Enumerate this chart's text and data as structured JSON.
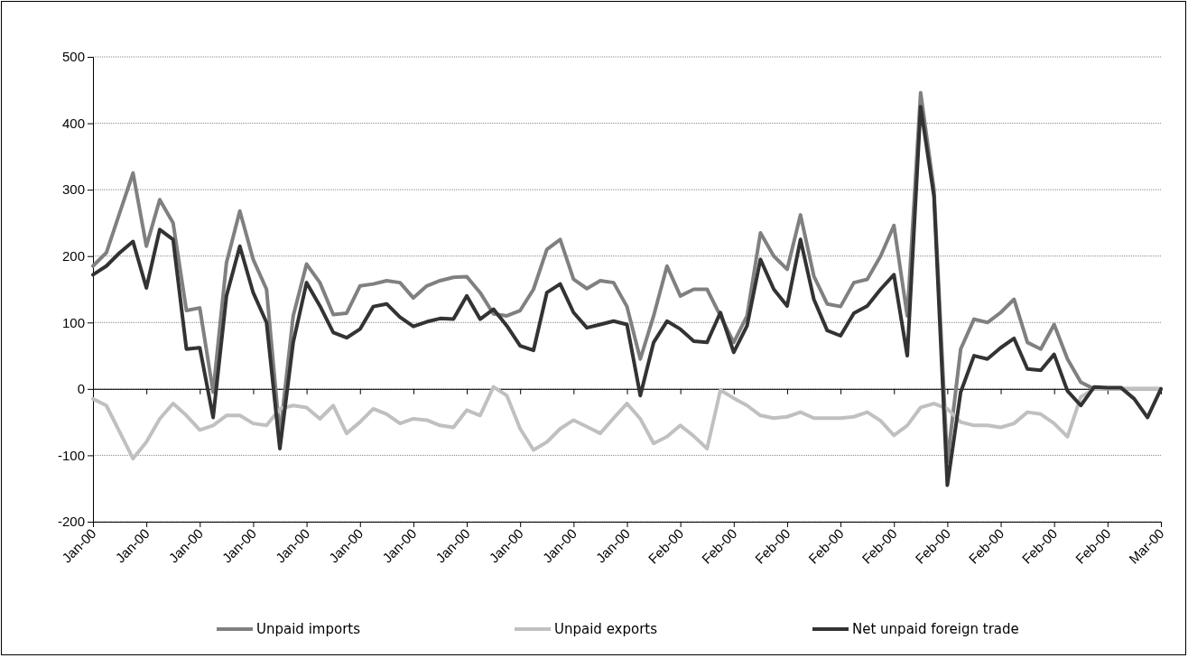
{
  "chart_data": {
    "type": "line",
    "categories": [
      "Jan-00",
      null,
      null,
      null,
      "Jan-00",
      null,
      null,
      null,
      "Jan-00",
      null,
      null,
      null,
      "Jan-00",
      null,
      null,
      null,
      "Jan-00",
      null,
      null,
      null,
      "Jan-00",
      null,
      null,
      null,
      "Jan-00",
      null,
      null,
      null,
      "Jan-00",
      null,
      null,
      null,
      "Jan-00",
      null,
      null,
      null,
      "Jan-00",
      null,
      null,
      null,
      "Jan-00",
      null,
      null,
      null,
      "Feb-00",
      null,
      null,
      null,
      "Feb-00",
      null,
      null,
      null,
      "Feb-00",
      null,
      null,
      null,
      "Feb-00",
      null,
      null,
      null,
      "Feb-00",
      null,
      null,
      null,
      "Feb-00",
      null,
      null,
      null,
      "Feb-00",
      null,
      null,
      null,
      "Feb-00",
      null,
      null,
      null,
      "Feb-00",
      null,
      null,
      null,
      "Mar-00"
    ],
    "series": [
      {
        "name": "Unpaid imports",
        "color": "#808080",
        "values": [
          185,
          205,
          265,
          325,
          215,
          285,
          250,
          118,
          122,
          -5,
          190,
          268,
          195,
          150,
          -70,
          110,
          188,
          160,
          112,
          114,
          155,
          158,
          163,
          160,
          137,
          155,
          163,
          168,
          169,
          145,
          113,
          110,
          118,
          150,
          210,
          225,
          165,
          151,
          163,
          160,
          124,
          45,
          110,
          185,
          140,
          150,
          150,
          110,
          70,
          110,
          235,
          200,
          180,
          262,
          170,
          128,
          124,
          160,
          165,
          200,
          246,
          110,
          446,
          300,
          -110,
          60,
          105,
          100,
          115,
          135,
          70,
          60,
          97,
          45,
          10,
          0,
          0,
          0,
          0,
          0,
          0
        ]
      },
      {
        "name": "Unpaid exports",
        "color": "#c0c0c0",
        "values": [
          -15,
          -25,
          -65,
          -105,
          -80,
          -45,
          -22,
          -40,
          -62,
          -55,
          -40,
          -40,
          -52,
          -55,
          -30,
          -25,
          -28,
          -45,
          -25,
          -67,
          -50,
          -30,
          -38,
          -52,
          -45,
          -47,
          -55,
          -58,
          -32,
          -40,
          3,
          -10,
          -60,
          -92,
          -80,
          -60,
          -47,
          -57,
          -67,
          -44,
          -22,
          -45,
          -82,
          -72,
          -55,
          -71,
          -90,
          -2,
          -14,
          -25,
          -40,
          -44,
          -42,
          -35,
          -44,
          -44,
          -44,
          -42,
          -35,
          -48,
          -70,
          -55,
          -28,
          -22,
          -30,
          -50,
          -55,
          -55,
          -58,
          -52,
          -35,
          -38,
          -52,
          -72,
          -12,
          0,
          0,
          0,
          0,
          0,
          0
        ]
      },
      {
        "name": "Net unpaid foreign trade",
        "color": "#333333",
        "values": [
          172,
          185,
          205,
          222,
          152,
          240,
          225,
          60,
          62,
          -43,
          140,
          215,
          145,
          100,
          -90,
          70,
          160,
          125,
          85,
          77,
          90,
          124,
          128,
          108,
          94,
          101,
          106,
          105,
          140,
          105,
          120,
          95,
          65,
          58,
          145,
          158,
          115,
          92,
          97,
          102,
          97,
          -10,
          70,
          102,
          90,
          72,
          70,
          115,
          55,
          95,
          195,
          150,
          125,
          225,
          135,
          88,
          80,
          114,
          125,
          150,
          172,
          50,
          425,
          290,
          -145,
          -5,
          50,
          45,
          62,
          76,
          30,
          28,
          52,
          -3,
          -25,
          3,
          2,
          2,
          -15,
          -43,
          0
        ]
      }
    ],
    "ylim": [
      -200,
      500
    ],
    "yticks": [
      -200,
      -100,
      0,
      100,
      200,
      300,
      400,
      500
    ],
    "grid": "y",
    "legend": "bottom",
    "line_style": "solid",
    "marker": "none"
  }
}
